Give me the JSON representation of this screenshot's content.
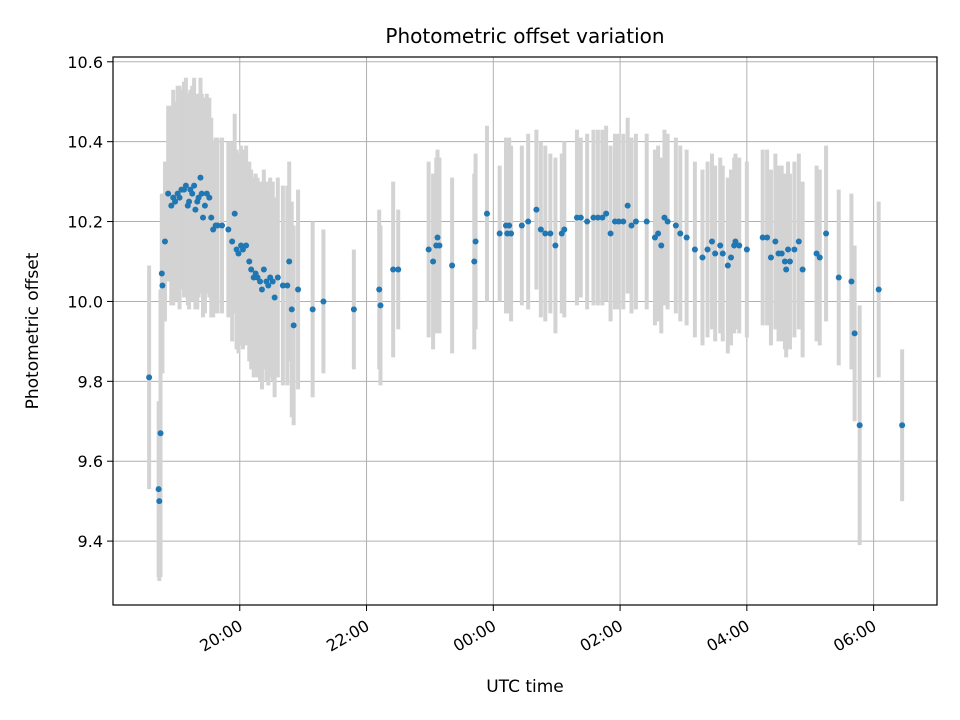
{
  "chart_data": {
    "type": "scatter",
    "title": "Photometric offset variation",
    "xlabel": "UTC time",
    "ylabel": "Photometric offset",
    "x_unit": "hours",
    "x_ticks": [
      {
        "value": 20,
        "label": "20:00"
      },
      {
        "value": 22,
        "label": "22:00"
      },
      {
        "value": 24,
        "label": "00:00"
      },
      {
        "value": 26,
        "label": "02:00"
      },
      {
        "value": 28,
        "label": "04:00"
      },
      {
        "value": 30,
        "label": "06:00"
      }
    ],
    "y_ticks": [
      9.4,
      9.6,
      9.8,
      10.0,
      10.2,
      10.4,
      10.6
    ],
    "xlim": [
      18.0,
      31.0
    ],
    "ylim": [
      9.24,
      10.612
    ],
    "grid": true,
    "colors": {
      "point": "#1f77b4",
      "errorbar": "#d3d3d3",
      "grid": "#b0b0b0"
    },
    "points": [
      [
        18.57,
        9.81,
        0.28
      ],
      [
        18.72,
        9.53,
        0.22
      ],
      [
        18.73,
        9.5,
        0.2
      ],
      [
        18.75,
        9.67,
        0.36
      ],
      [
        18.77,
        10.07,
        0.2
      ],
      [
        18.78,
        10.04,
        0.22
      ],
      [
        18.82,
        10.15,
        0.2
      ],
      [
        18.87,
        10.27,
        0.22
      ],
      [
        18.92,
        10.24,
        0.25
      ],
      [
        18.95,
        10.26,
        0.27
      ],
      [
        18.98,
        10.25,
        0.25
      ],
      [
        19.02,
        10.27,
        0.27
      ],
      [
        19.05,
        10.26,
        0.28
      ],
      [
        19.08,
        10.28,
        0.25
      ],
      [
        19.12,
        10.28,
        0.27
      ],
      [
        19.15,
        10.29,
        0.27
      ],
      [
        19.18,
        10.24,
        0.25
      ],
      [
        19.2,
        10.25,
        0.27
      ],
      [
        19.22,
        10.28,
        0.25
      ],
      [
        19.25,
        10.27,
        0.27
      ],
      [
        19.28,
        10.29,
        0.27
      ],
      [
        19.3,
        10.23,
        0.25
      ],
      [
        19.33,
        10.25,
        0.27
      ],
      [
        19.35,
        10.26,
        0.25
      ],
      [
        19.38,
        10.31,
        0.25
      ],
      [
        19.4,
        10.27,
        0.25
      ],
      [
        19.42,
        10.21,
        0.25
      ],
      [
        19.45,
        10.24,
        0.27
      ],
      [
        19.48,
        10.27,
        0.25
      ],
      [
        19.52,
        10.26,
        0.25
      ],
      [
        19.55,
        10.21,
        0.25
      ],
      [
        19.58,
        10.18,
        0.22
      ],
      [
        19.62,
        10.19,
        0.22
      ],
      [
        19.65,
        10.19,
        0.22
      ],
      [
        19.72,
        10.19,
        0.22
      ],
      [
        19.82,
        10.18,
        0.22
      ],
      [
        19.88,
        10.15,
        0.25
      ],
      [
        19.92,
        10.22,
        0.25
      ],
      [
        19.95,
        10.13,
        0.25
      ],
      [
        19.98,
        10.12,
        0.25
      ],
      [
        20.02,
        10.14,
        0.25
      ],
      [
        20.05,
        10.13,
        0.25
      ],
      [
        20.1,
        10.14,
        0.25
      ],
      [
        20.15,
        10.1,
        0.25
      ],
      [
        20.18,
        10.08,
        0.25
      ],
      [
        20.22,
        10.06,
        0.25
      ],
      [
        20.25,
        10.07,
        0.25
      ],
      [
        20.28,
        10.06,
        0.25
      ],
      [
        20.32,
        10.05,
        0.25
      ],
      [
        20.35,
        10.03,
        0.25
      ],
      [
        20.38,
        10.08,
        0.25
      ],
      [
        20.42,
        10.05,
        0.25
      ],
      [
        20.45,
        10.04,
        0.25
      ],
      [
        20.48,
        10.06,
        0.25
      ],
      [
        20.52,
        10.05,
        0.25
      ],
      [
        20.55,
        10.01,
        0.25
      ],
      [
        20.6,
        10.06,
        0.25
      ],
      [
        20.68,
        10.04,
        0.25
      ],
      [
        20.75,
        10.04,
        0.25
      ],
      [
        20.78,
        10.1,
        0.25
      ],
      [
        20.82,
        9.98,
        0.27
      ],
      [
        20.85,
        9.94,
        0.25
      ],
      [
        20.92,
        10.03,
        0.25
      ],
      [
        21.15,
        9.98,
        0.22
      ],
      [
        21.32,
        10.0,
        0.18
      ],
      [
        21.8,
        9.98,
        0.15
      ],
      [
        22.2,
        10.03,
        0.2
      ],
      [
        22.22,
        9.99,
        0.2
      ],
      [
        22.42,
        10.08,
        0.22
      ],
      [
        22.5,
        10.08,
        0.15
      ],
      [
        22.98,
        10.13,
        0.22
      ],
      [
        23.05,
        10.1,
        0.22
      ],
      [
        23.1,
        10.14,
        0.22
      ],
      [
        23.12,
        10.16,
        0.22
      ],
      [
        23.15,
        10.14,
        0.22
      ],
      [
        23.35,
        10.09,
        0.22
      ],
      [
        23.7,
        10.1,
        0.22
      ],
      [
        23.72,
        10.15,
        0.22
      ],
      [
        23.9,
        10.22,
        0.22
      ],
      [
        24.1,
        10.17,
        0.17
      ],
      [
        24.2,
        10.19,
        0.22
      ],
      [
        24.22,
        10.17,
        0.2
      ],
      [
        24.25,
        10.19,
        0.22
      ],
      [
        24.28,
        10.17,
        0.22
      ],
      [
        24.45,
        10.19,
        0.2
      ],
      [
        24.55,
        10.2,
        0.22
      ],
      [
        24.68,
        10.23,
        0.2
      ],
      [
        24.75,
        10.18,
        0.22
      ],
      [
        24.82,
        10.17,
        0.22
      ],
      [
        24.9,
        10.17,
        0.2
      ],
      [
        24.98,
        10.14,
        0.22
      ],
      [
        25.08,
        10.17,
        0.2
      ],
      [
        25.12,
        10.18,
        0.22
      ],
      [
        25.32,
        10.21,
        0.22
      ],
      [
        25.38,
        10.21,
        0.2
      ],
      [
        25.48,
        10.2,
        0.22
      ],
      [
        25.58,
        10.21,
        0.22
      ],
      [
        25.65,
        10.21,
        0.22
      ],
      [
        25.72,
        10.21,
        0.22
      ],
      [
        25.78,
        10.22,
        0.22
      ],
      [
        25.85,
        10.17,
        0.22
      ],
      [
        25.92,
        10.2,
        0.22
      ],
      [
        25.98,
        10.2,
        0.22
      ],
      [
        26.05,
        10.2,
        0.22
      ],
      [
        26.12,
        10.24,
        0.22
      ],
      [
        26.18,
        10.19,
        0.22
      ],
      [
        26.25,
        10.2,
        0.22
      ],
      [
        26.42,
        10.2,
        0.22
      ],
      [
        26.55,
        10.16,
        0.22
      ],
      [
        26.6,
        10.17,
        0.22
      ],
      [
        26.65,
        10.14,
        0.22
      ],
      [
        26.7,
        10.21,
        0.22
      ],
      [
        26.75,
        10.2,
        0.22
      ],
      [
        26.88,
        10.19,
        0.22
      ],
      [
        26.95,
        10.17,
        0.22
      ],
      [
        27.05,
        10.16,
        0.22
      ],
      [
        27.18,
        10.13,
        0.22
      ],
      [
        27.3,
        10.11,
        0.22
      ],
      [
        27.38,
        10.13,
        0.22
      ],
      [
        27.45,
        10.15,
        0.22
      ],
      [
        27.5,
        10.12,
        0.22
      ],
      [
        27.58,
        10.14,
        0.22
      ],
      [
        27.62,
        10.12,
        0.22
      ],
      [
        27.7,
        10.09,
        0.22
      ],
      [
        27.75,
        10.11,
        0.22
      ],
      [
        27.8,
        10.14,
        0.22
      ],
      [
        27.82,
        10.15,
        0.22
      ],
      [
        27.88,
        10.14,
        0.22
      ],
      [
        28.0,
        10.13,
        0.22
      ],
      [
        28.25,
        10.16,
        0.22
      ],
      [
        28.32,
        10.16,
        0.22
      ],
      [
        28.38,
        10.11,
        0.22
      ],
      [
        28.45,
        10.15,
        0.22
      ],
      [
        28.5,
        10.12,
        0.22
      ],
      [
        28.55,
        10.12,
        0.22
      ],
      [
        28.6,
        10.1,
        0.22
      ],
      [
        28.62,
        10.08,
        0.22
      ],
      [
        28.65,
        10.13,
        0.22
      ],
      [
        28.68,
        10.1,
        0.22
      ],
      [
        28.75,
        10.13,
        0.22
      ],
      [
        28.82,
        10.15,
        0.22
      ],
      [
        28.88,
        10.08,
        0.22
      ],
      [
        29.1,
        10.12,
        0.22
      ],
      [
        29.15,
        10.11,
        0.22
      ],
      [
        29.25,
        10.17,
        0.22
      ],
      [
        29.45,
        10.06,
        0.22
      ],
      [
        29.65,
        10.05,
        0.22
      ],
      [
        29.7,
        9.92,
        0.22
      ],
      [
        29.78,
        9.69,
        0.3
      ],
      [
        30.08,
        10.03,
        0.22
      ],
      [
        30.45,
        9.69,
        0.19
      ]
    ]
  }
}
